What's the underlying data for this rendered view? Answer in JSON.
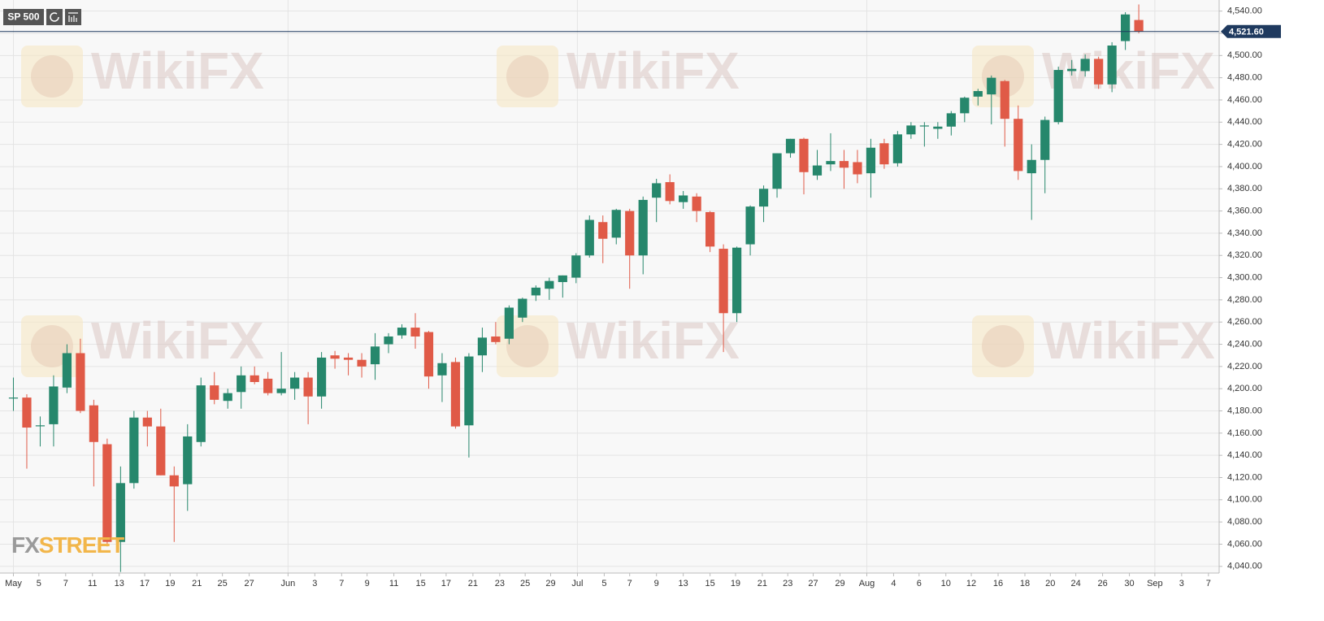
{
  "chart_data": {
    "type": "candlestick",
    "title": "SP 500",
    "watermark": "WikiFX",
    "logo": [
      "FX",
      "STREET"
    ],
    "up_color": "#26876c",
    "down_color": "#e05a47",
    "grid": true,
    "ylim": [
      4034,
      4550
    ],
    "yticks": [
      {
        "value": 4040,
        "label": "4,040.00"
      },
      {
        "value": 4060,
        "label": "4,060.00"
      },
      {
        "value": 4080,
        "label": "4,080.00"
      },
      {
        "value": 4100,
        "label": "4,100.00"
      },
      {
        "value": 4120,
        "label": "4,120.00"
      },
      {
        "value": 4140,
        "label": "4,140.00"
      },
      {
        "value": 4160,
        "label": "4,160.00"
      },
      {
        "value": 4180,
        "label": "4,180.00"
      },
      {
        "value": 4200,
        "label": "4,200.00"
      },
      {
        "value": 4220,
        "label": "4,220.00"
      },
      {
        "value": 4240,
        "label": "4,240.00"
      },
      {
        "value": 4260,
        "label": "4,260.00"
      },
      {
        "value": 4280,
        "label": "4,280.00"
      },
      {
        "value": 4300,
        "label": "4,300.00"
      },
      {
        "value": 4320,
        "label": "4,320.00"
      },
      {
        "value": 4340,
        "label": "4,340.00"
      },
      {
        "value": 4360,
        "label": "4,360.00"
      },
      {
        "value": 4380,
        "label": "4,380.00"
      },
      {
        "value": 4400,
        "label": "4,400.00"
      },
      {
        "value": 4420,
        "label": "4,420.00"
      },
      {
        "value": 4440,
        "label": "4,440.00"
      },
      {
        "value": 4460,
        "label": "4,460.00"
      },
      {
        "value": 4480,
        "label": "4,480.00"
      },
      {
        "value": 4500,
        "label": "4,500.00"
      },
      {
        "value": 4520,
        "label": "4,520.00"
      },
      {
        "value": 4540,
        "label": "4,540.00"
      }
    ],
    "last_price": {
      "value": 4521.6,
      "label": "4,521.60"
    },
    "xlim": [
      -1,
      90
    ],
    "xticks": [
      {
        "value": 0,
        "label": "May"
      },
      {
        "value": 1.9,
        "label": "5"
      },
      {
        "value": 3.9,
        "label": "7"
      },
      {
        "value": 5.9,
        "label": "11"
      },
      {
        "value": 7.9,
        "label": "13"
      },
      {
        "value": 9.8,
        "label": "17"
      },
      {
        "value": 11.7,
        "label": "19"
      },
      {
        "value": 13.7,
        "label": "21"
      },
      {
        "value": 15.6,
        "label": "25"
      },
      {
        "value": 17.6,
        "label": "27"
      },
      {
        "value": 20.5,
        "label": "Jun"
      },
      {
        "value": 22.5,
        "label": "3"
      },
      {
        "value": 24.5,
        "label": "7"
      },
      {
        "value": 26.4,
        "label": "9"
      },
      {
        "value": 28.4,
        "label": "11"
      },
      {
        "value": 30.4,
        "label": "15"
      },
      {
        "value": 32.3,
        "label": "17"
      },
      {
        "value": 34.3,
        "label": "21"
      },
      {
        "value": 36.3,
        "label": "23"
      },
      {
        "value": 38.2,
        "label": "25"
      },
      {
        "value": 40.1,
        "label": "29"
      },
      {
        "value": 42.1,
        "label": "Jul"
      },
      {
        "value": 44.1,
        "label": "5"
      },
      {
        "value": 46,
        "label": "7"
      },
      {
        "value": 48,
        "label": "9"
      },
      {
        "value": 50,
        "label": "13"
      },
      {
        "value": 52,
        "label": "15"
      },
      {
        "value": 53.9,
        "label": "19"
      },
      {
        "value": 55.9,
        "label": "21"
      },
      {
        "value": 57.8,
        "label": "23"
      },
      {
        "value": 59.7,
        "label": "27"
      },
      {
        "value": 61.7,
        "label": "29"
      },
      {
        "value": 63.7,
        "label": "Aug"
      },
      {
        "value": 65.7,
        "label": "4"
      },
      {
        "value": 67.6,
        "label": "6"
      },
      {
        "value": 69.6,
        "label": "10"
      },
      {
        "value": 71.5,
        "label": "12"
      },
      {
        "value": 73.5,
        "label": "16"
      },
      {
        "value": 75.5,
        "label": "18"
      },
      {
        "value": 77.4,
        "label": "20"
      },
      {
        "value": 79.3,
        "label": "24"
      },
      {
        "value": 81.3,
        "label": "26"
      },
      {
        "value": 83.3,
        "label": "30"
      },
      {
        "value": 85.2,
        "label": "Sep"
      },
      {
        "value": 87.2,
        "label": "3"
      },
      {
        "value": 89.2,
        "label": "7"
      }
    ],
    "x": [
      0,
      1,
      2,
      3,
      4,
      5,
      6,
      7,
      8,
      9,
      10,
      11,
      12,
      13,
      14,
      15,
      16,
      17,
      18,
      19,
      20,
      21,
      22,
      23,
      24,
      25,
      26,
      27,
      28,
      29,
      30,
      31,
      32,
      33,
      34,
      35,
      36,
      37,
      38,
      39,
      40,
      41,
      42,
      43,
      44,
      45,
      46,
      47,
      48,
      49,
      50,
      51,
      52,
      53,
      54,
      55,
      56,
      57,
      58,
      59,
      60,
      61,
      62,
      63,
      64,
      65,
      66,
      67,
      68,
      69,
      70,
      71,
      72,
      73,
      74,
      75,
      76,
      77,
      78,
      79,
      80,
      81,
      82,
      83,
      84
    ],
    "ohlc": [
      [
        4192,
        4210,
        4180,
        4192
      ],
      [
        4192,
        4195,
        4128,
        4165
      ],
      [
        4167,
        4175,
        4148,
        4167
      ],
      [
        4168,
        4212,
        4148,
        4202
      ],
      [
        4201,
        4240,
        4196,
        4232
      ],
      [
        4232,
        4245,
        4178,
        4180
      ],
      [
        4185,
        4190,
        4112,
        4152
      ],
      [
        4150,
        4155,
        4058,
        4062
      ],
      [
        4062,
        4130,
        4035,
        4115
      ],
      [
        4115,
        4180,
        4110,
        4174
      ],
      [
        4174,
        4180,
        4148,
        4166
      ],
      [
        4166,
        4182,
        4122,
        4122
      ],
      [
        4122,
        4130,
        4062,
        4112
      ],
      [
        4114,
        4168,
        4090,
        4157
      ],
      [
        4152,
        4210,
        4148,
        4203
      ],
      [
        4203,
        4215,
        4186,
        4190
      ],
      [
        4189,
        4200,
        4182,
        4196
      ],
      [
        4197,
        4220,
        4182,
        4212
      ],
      [
        4212,
        4220,
        4204,
        4206
      ],
      [
        4209,
        4215,
        4194,
        4196
      ],
      [
        4196,
        4233,
        4194,
        4200
      ],
      [
        4200,
        4215,
        4190,
        4210
      ],
      [
        4210,
        4215,
        4168,
        4193
      ],
      [
        4193,
        4233,
        4182,
        4228
      ],
      [
        4230,
        4234,
        4218,
        4227
      ],
      [
        4228,
        4232,
        4212,
        4226
      ],
      [
        4226,
        4232,
        4210,
        4220
      ],
      [
        4222,
        4250,
        4208,
        4238
      ],
      [
        4240,
        4250,
        4232,
        4247
      ],
      [
        4248,
        4258,
        4245,
        4255
      ],
      [
        4255,
        4268,
        4236,
        4247
      ],
      [
        4251,
        4252,
        4200,
        4211
      ],
      [
        4212,
        4232,
        4188,
        4223
      ],
      [
        4224,
        4228,
        4164,
        4166
      ],
      [
        4167,
        4232,
        4138,
        4229
      ],
      [
        4230,
        4255,
        4215,
        4246
      ],
      [
        4247,
        4260,
        4240,
        4242
      ],
      [
        4245,
        4275,
        4240,
        4273
      ],
      [
        4264,
        4282,
        4260,
        4281
      ],
      [
        4284,
        4293,
        4279,
        4291
      ],
      [
        4290,
        4300,
        4280,
        4297
      ],
      [
        4296,
        4302,
        4282,
        4302
      ],
      [
        4300,
        4322,
        4295,
        4320
      ],
      [
        4320,
        4356,
        4318,
        4352
      ],
      [
        4350,
        4356,
        4313,
        4335
      ],
      [
        4336,
        4362,
        4330,
        4361
      ],
      [
        4360,
        4362,
        4290,
        4320
      ],
      [
        4320,
        4373,
        4303,
        4370
      ],
      [
        4372,
        4389,
        4350,
        4385
      ],
      [
        4386,
        4393,
        4366,
        4369
      ],
      [
        4368,
        4378,
        4362,
        4374
      ],
      [
        4373,
        4376,
        4350,
        4360
      ],
      [
        4359,
        4360,
        4323,
        4328
      ],
      [
        4326,
        4330,
        4233,
        4268
      ],
      [
        4268,
        4328,
        4260,
        4327
      ],
      [
        4330,
        4365,
        4320,
        4364
      ],
      [
        4364,
        4383,
        4350,
        4380
      ],
      [
        4380,
        4412,
        4372,
        4412
      ],
      [
        4412,
        4425,
        4408,
        4425
      ],
      [
        4425,
        4426,
        4375,
        4395
      ],
      [
        4392,
        4415,
        4388,
        4401
      ],
      [
        4402,
        4430,
        4396,
        4405
      ],
      [
        4405,
        4415,
        4380,
        4399
      ],
      [
        4404,
        4415,
        4385,
        4393
      ],
      [
        4394,
        4425,
        4372,
        4417
      ],
      [
        4421,
        4425,
        4398,
        4402
      ],
      [
        4403,
        4432,
        4400,
        4429
      ],
      [
        4429,
        4440,
        4425,
        4437
      ],
      [
        4437,
        4440,
        4418,
        4437
      ],
      [
        4434,
        4440,
        4425,
        4436
      ],
      [
        4436,
        4450,
        4428,
        4448
      ],
      [
        4448,
        4463,
        4440,
        4462
      ],
      [
        4463,
        4470,
        4455,
        4468
      ],
      [
        4465,
        4482,
        4438,
        4480
      ],
      [
        4477,
        4478,
        4418,
        4443
      ],
      [
        4443,
        4455,
        4388,
        4396
      ],
      [
        4394,
        4420,
        4352,
        4406
      ],
      [
        4406,
        4445,
        4376,
        4442
      ],
      [
        4440,
        4490,
        4438,
        4487
      ],
      [
        4486,
        4496,
        4482,
        4488
      ],
      [
        4486,
        4501,
        4481,
        4497
      ],
      [
        4497,
        4499,
        4470,
        4474
      ],
      [
        4474,
        4512,
        4467,
        4509
      ],
      [
        4513,
        4539,
        4505,
        4537
      ],
      [
        4532,
        4546,
        4520,
        4521.6
      ]
    ]
  }
}
